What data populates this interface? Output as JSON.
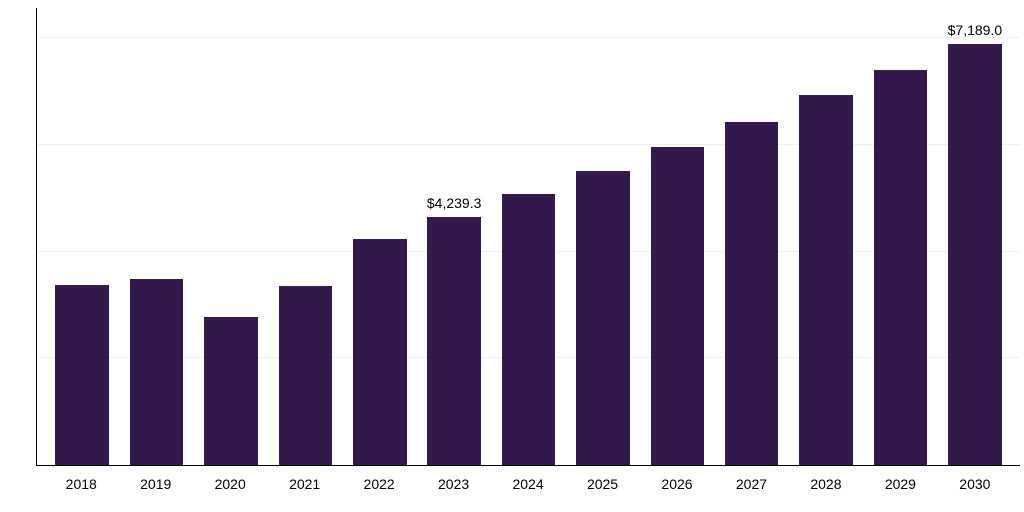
{
  "chart": {
    "type": "bar",
    "categories": [
      "2018",
      "2019",
      "2020",
      "2021",
      "2022",
      "2023",
      "2024",
      "2025",
      "2026",
      "2027",
      "2028",
      "2029",
      "2030"
    ],
    "values": [
      3080,
      3180,
      2530,
      3050,
      3850,
      4239.3,
      4630,
      5020,
      5430,
      5860,
      6310,
      6750,
      7189.0
    ],
    "value_labels": [
      null,
      null,
      null,
      null,
      null,
      "$4,239.3",
      null,
      null,
      null,
      null,
      null,
      null,
      "$7,189.0"
    ],
    "bar_color": "#331a4d",
    "background_color": "#ffffff",
    "grid_color": "#f0f0f0",
    "axis_color": "#000000",
    "ymin": 0,
    "ymax": 7800,
    "gridlines_y": [
      1820,
      3640,
      5460,
      7280
    ],
    "label_fontsize": 14,
    "tick_fontsize": 14,
    "bar_width_pct": 72
  }
}
